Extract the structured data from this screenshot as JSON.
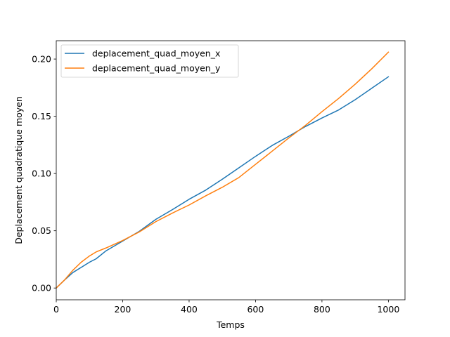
{
  "chart_data": {
    "type": "line",
    "title": "",
    "xlabel": "Temps",
    "ylabel": "Deplacement quadratique moyen",
    "xlim": [
      0,
      1050
    ],
    "ylim": [
      -0.0103,
      0.216
    ],
    "xticks": [
      0,
      200,
      400,
      600,
      800,
      1000
    ],
    "xtick_labels": [
      "0",
      "200",
      "400",
      "600",
      "800",
      "1000"
    ],
    "yticks": [
      0.0,
      0.05,
      0.1,
      0.15,
      0.2
    ],
    "ytick_labels": [
      "0.00",
      "0.05",
      "0.10",
      "0.15",
      "0.20"
    ],
    "grid": false,
    "legend_position": "top-left",
    "series": [
      {
        "name": "deplacement_quad_moyen_x",
        "color": "#1f77b4",
        "x": [
          0,
          25,
          50,
          75,
          100,
          120,
          150,
          200,
          250,
          300,
          350,
          400,
          450,
          500,
          550,
          600,
          650,
          700,
          750,
          800,
          850,
          900,
          950,
          1000
        ],
        "y": [
          0.0,
          0.007,
          0.0135,
          0.018,
          0.0225,
          0.0255,
          0.0325,
          0.041,
          0.0495,
          0.06,
          0.0685,
          0.0775,
          0.0855,
          0.095,
          0.105,
          0.115,
          0.1245,
          0.1325,
          0.141,
          0.1485,
          0.1555,
          0.1645,
          0.1745,
          0.1845
        ]
      },
      {
        "name": "deplacement_quad_moyen_y",
        "color": "#ff7f0e",
        "x": [
          0,
          25,
          50,
          75,
          100,
          120,
          150,
          200,
          250,
          300,
          350,
          400,
          450,
          500,
          550,
          600,
          650,
          700,
          750,
          800,
          850,
          900,
          950,
          1000
        ],
        "y": [
          0.0,
          0.007,
          0.0155,
          0.0225,
          0.028,
          0.0315,
          0.035,
          0.0415,
          0.049,
          0.058,
          0.0655,
          0.0725,
          0.0805,
          0.088,
          0.0965,
          0.108,
          0.1195,
          0.131,
          0.142,
          0.154,
          0.1655,
          0.178,
          0.1915,
          0.206
        ]
      }
    ]
  }
}
